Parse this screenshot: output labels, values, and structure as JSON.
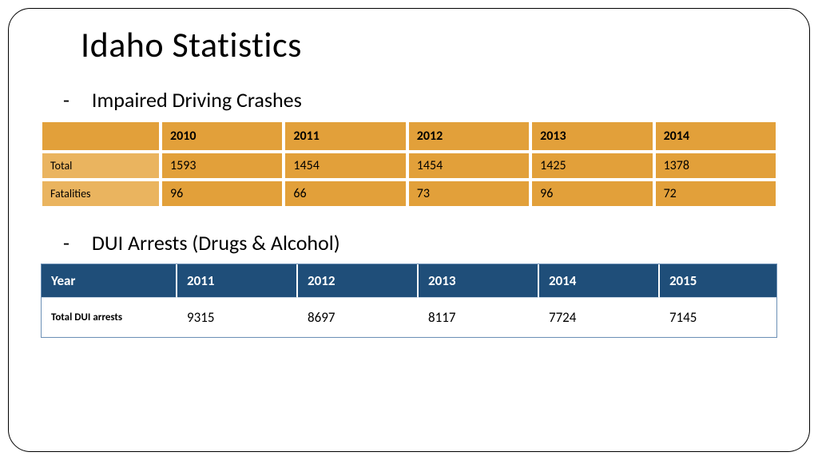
{
  "title": "Idaho Statistics",
  "section1": {
    "heading": "Impaired Driving Crashes",
    "table": {
      "header_bg": "#e2a03a",
      "body_bg": "#e2a03a",
      "label_bg": "#eab45f",
      "border_color": "#ffffff",
      "columns": [
        "2010",
        "2011",
        "2012",
        "2013",
        "2014"
      ],
      "rows": [
        {
          "label": "Total",
          "values": [
            "1593",
            "1454",
            "1454",
            "1425",
            "1378"
          ]
        },
        {
          "label": "Fatalities",
          "values": [
            "96",
            "66",
            "73",
            "96",
            "72"
          ]
        }
      ]
    }
  },
  "section2": {
    "heading": "DUI Arrests (Drugs & Alcohol)",
    "table": {
      "header_bg": "#1f4e79",
      "header_text": "#ffffff",
      "body_bg": "#ffffff",
      "border_color": "#6b8fb5",
      "year_label": "Year",
      "columns": [
        "2011",
        "2012",
        "2013",
        "2014",
        "2015"
      ],
      "rows": [
        {
          "label": "Total DUI arrests",
          "values": [
            "9315",
            "8697",
            "8117",
            "7724",
            "7145"
          ]
        }
      ]
    }
  }
}
